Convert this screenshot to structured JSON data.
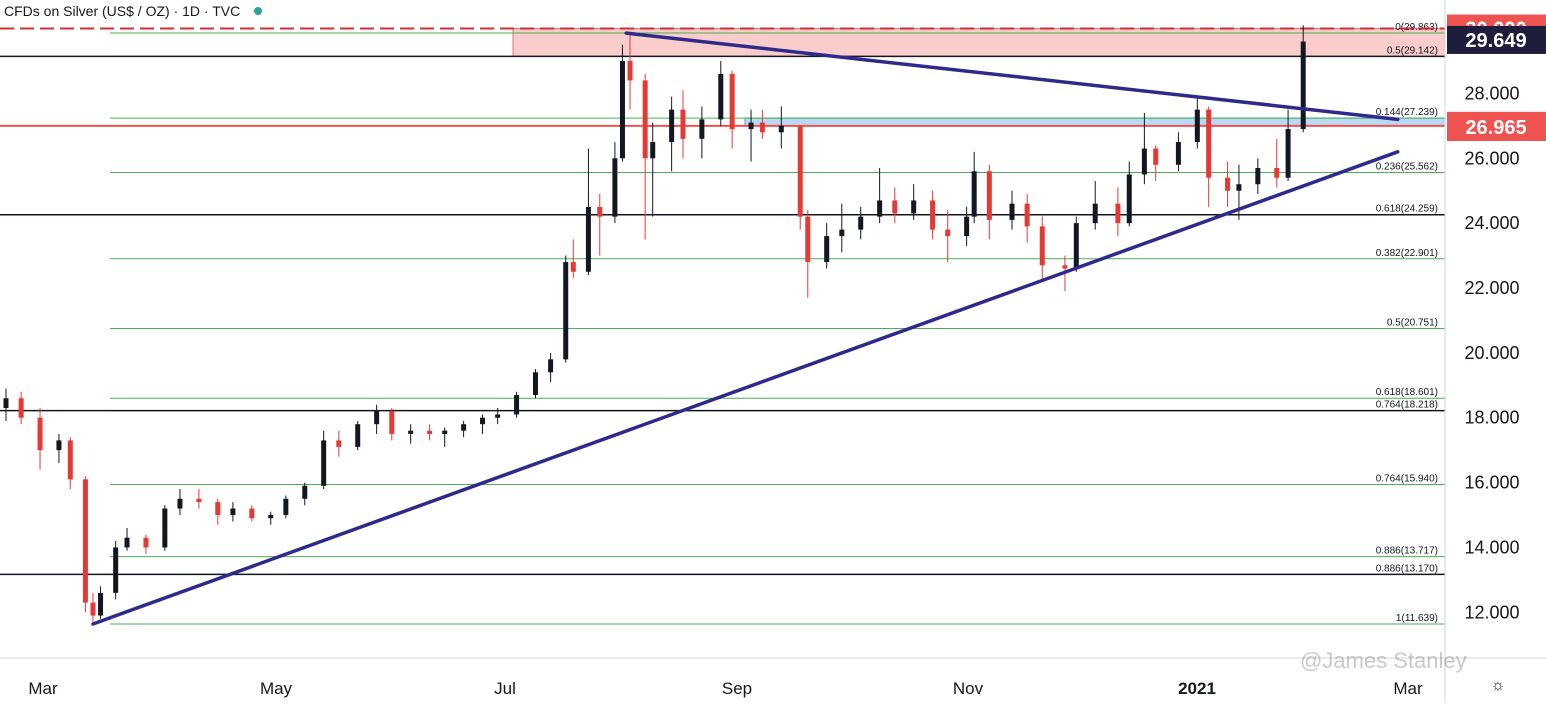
{
  "header": {
    "title": "CFDs on Silver (US$ / OZ) · 1D · TVC"
  },
  "watermark": "@James Stanley",
  "colors": {
    "up": "#131722",
    "down": "#e53935",
    "fib_green": "#4caf50",
    "trendline": "#2e2a8c",
    "resistance_zone": "rgba(244,143,143,0.45)",
    "support_zone": "rgba(100,170,230,0.45)",
    "price_label_red": "#ef5350",
    "price_label_dark": "#1e1e3c"
  },
  "chart_data": {
    "type": "candlestick",
    "ylim": [
      10.5,
      30.4
    ],
    "yticks": [
      "12.000",
      "14.000",
      "16.000",
      "18.000",
      "20.000",
      "22.000",
      "24.000",
      "26.000",
      "28.000"
    ],
    "x_labels": [
      "Mar",
      "May",
      "Jul",
      "Sep",
      "Nov",
      "2021",
      "Mar"
    ],
    "price_labels": [
      {
        "text": "30.000",
        "value": 30.0,
        "style": "red"
      },
      {
        "text": "29.649",
        "value": 29.649,
        "style": "dark"
      },
      {
        "text": "27.000",
        "value": 27.0,
        "style": "red"
      },
      {
        "text": "26.965",
        "value": 26.965,
        "style": "red"
      }
    ],
    "fib_levels": [
      {
        "label": "0(29.863)",
        "value": 29.863
      },
      {
        "label": "0.5(29.142)",
        "value": 29.142
      },
      {
        "label": "0.144(27.239)",
        "value": 27.239
      },
      {
        "label": "0.236(25.562)",
        "value": 25.562
      },
      {
        "label": "0.618(24.259)",
        "value": 24.259
      },
      {
        "label": "0.382(22.901)",
        "value": 22.901
      },
      {
        "label": "0.5(20.751)",
        "value": 20.751
      },
      {
        "label": "0.618(18.601)",
        "value": 18.601
      },
      {
        "label": "0.764(18.218)",
        "value": 18.218
      },
      {
        "label": "0.764(15.940)",
        "value": 15.94
      },
      {
        "label": "0.886(13.717)",
        "value": 13.717
      },
      {
        "label": "0.886(13.170)",
        "value": 13.17
      },
      {
        "label": "1(11.639)",
        "value": 11.639
      }
    ],
    "horizontal_lines": [
      {
        "value": 30.0,
        "style": "red-dashed"
      },
      {
        "value": 29.142,
        "style": "black"
      },
      {
        "value": 27.0,
        "style": "red"
      },
      {
        "value": 24.259,
        "style": "black"
      },
      {
        "value": 18.218,
        "style": "black"
      },
      {
        "value": 13.17,
        "style": "black"
      }
    ],
    "zones": [
      {
        "name": "resistance",
        "from": 29.142,
        "to": 30.0
      },
      {
        "name": "support",
        "from": 27.0,
        "to": 27.239
      }
    ],
    "trendlines": [
      {
        "from": [
          "2020-03-18",
          11.64
        ],
        "to": [
          "2021-02-26",
          26.2
        ]
      },
      {
        "from": [
          "2020-08-06",
          29.86
        ],
        "to": [
          "2021-02-26",
          27.2
        ]
      }
    ],
    "candles": [
      [
        "2020-02-24",
        18.3,
        18.9,
        17.9,
        18.6
      ],
      [
        "2020-02-28",
        18.6,
        18.8,
        17.8,
        18.0
      ],
      [
        "2020-03-04",
        18.0,
        18.3,
        16.4,
        17.0
      ],
      [
        "2020-03-09",
        17.0,
        17.5,
        16.6,
        17.3
      ],
      [
        "2020-03-12",
        17.3,
        17.4,
        15.8,
        16.1
      ],
      [
        "2020-03-16",
        16.1,
        16.2,
        12.0,
        12.3
      ],
      [
        "2020-03-18",
        12.3,
        12.6,
        11.6,
        11.9
      ],
      [
        "2020-03-20",
        11.9,
        12.8,
        11.8,
        12.6
      ],
      [
        "2020-03-24",
        12.6,
        14.2,
        12.4,
        14.0
      ],
      [
        "2020-03-27",
        14.0,
        14.6,
        13.9,
        14.3
      ],
      [
        "2020-04-01",
        14.3,
        14.4,
        13.8,
        14.0
      ],
      [
        "2020-04-06",
        14.0,
        15.3,
        13.9,
        15.2
      ],
      [
        "2020-04-10",
        15.2,
        15.8,
        15.0,
        15.5
      ],
      [
        "2020-04-15",
        15.5,
        15.8,
        15.2,
        15.4
      ],
      [
        "2020-04-20",
        15.4,
        15.5,
        14.7,
        15.0
      ],
      [
        "2020-04-24",
        15.0,
        15.4,
        14.8,
        15.2
      ],
      [
        "2020-04-29",
        15.2,
        15.3,
        14.8,
        14.9
      ],
      [
        "2020-05-04",
        14.9,
        15.1,
        14.7,
        15.0
      ],
      [
        "2020-05-08",
        15.0,
        15.6,
        14.9,
        15.5
      ],
      [
        "2020-05-13",
        15.5,
        16.0,
        15.3,
        15.9
      ],
      [
        "2020-05-18",
        15.9,
        17.6,
        15.8,
        17.3
      ],
      [
        "2020-05-22",
        17.3,
        17.6,
        16.8,
        17.1
      ],
      [
        "2020-05-27",
        17.1,
        17.9,
        17.0,
        17.8
      ],
      [
        "2020-06-01",
        17.8,
        18.4,
        17.5,
        18.2
      ],
      [
        "2020-06-05",
        18.2,
        18.3,
        17.3,
        17.5
      ],
      [
        "2020-06-10",
        17.5,
        17.8,
        17.2,
        17.6
      ],
      [
        "2020-06-15",
        17.6,
        17.8,
        17.3,
        17.5
      ],
      [
        "2020-06-19",
        17.5,
        17.7,
        17.1,
        17.6
      ],
      [
        "2020-06-24",
        17.6,
        17.9,
        17.4,
        17.8
      ],
      [
        "2020-06-29",
        17.8,
        18.1,
        17.5,
        18.0
      ],
      [
        "2020-07-03",
        18.0,
        18.3,
        17.8,
        18.1
      ],
      [
        "2020-07-08",
        18.1,
        18.8,
        18.0,
        18.7
      ],
      [
        "2020-07-13",
        18.7,
        19.5,
        18.6,
        19.4
      ],
      [
        "2020-07-17",
        19.4,
        20.0,
        19.1,
        19.8
      ],
      [
        "2020-07-21",
        19.8,
        23.0,
        19.7,
        22.8
      ],
      [
        "2020-07-23",
        22.8,
        23.5,
        22.3,
        22.5
      ],
      [
        "2020-07-27",
        22.5,
        26.3,
        22.4,
        24.5
      ],
      [
        "2020-07-30",
        24.5,
        24.9,
        23.0,
        24.2
      ],
      [
        "2020-08-03",
        24.2,
        26.5,
        24.0,
        26.0
      ],
      [
        "2020-08-05",
        26.0,
        29.5,
        25.9,
        29.0
      ],
      [
        "2020-08-07",
        29.0,
        29.9,
        27.5,
        28.4
      ],
      [
        "2020-08-11",
        28.4,
        28.6,
        23.5,
        26.0
      ],
      [
        "2020-08-13",
        26.0,
        27.1,
        24.2,
        26.5
      ],
      [
        "2020-08-18",
        26.5,
        27.9,
        25.6,
        27.5
      ],
      [
        "2020-08-21",
        27.5,
        28.1,
        26.0,
        26.6
      ],
      [
        "2020-08-26",
        26.6,
        27.6,
        26.0,
        27.2
      ],
      [
        "2020-08-31",
        27.2,
        29.0,
        27.0,
        28.6
      ],
      [
        "2020-09-03",
        28.6,
        28.7,
        26.3,
        26.9
      ],
      [
        "2020-09-08",
        26.9,
        27.5,
        25.9,
        27.1
      ],
      [
        "2020-09-11",
        27.1,
        27.5,
        26.6,
        26.8
      ],
      [
        "2020-09-16",
        26.8,
        27.6,
        26.3,
        27.0
      ],
      [
        "2020-09-21",
        27.0,
        27.0,
        23.8,
        24.2
      ],
      [
        "2020-09-23",
        24.2,
        24.4,
        21.7,
        22.8
      ],
      [
        "2020-09-28",
        22.8,
        24.0,
        22.6,
        23.6
      ],
      [
        "2020-10-02",
        23.6,
        24.6,
        23.1,
        23.8
      ],
      [
        "2020-10-07",
        23.8,
        24.5,
        23.5,
        24.2
      ],
      [
        "2020-10-12",
        24.2,
        25.7,
        24.0,
        24.7
      ],
      [
        "2020-10-16",
        24.7,
        25.1,
        24.0,
        24.3
      ],
      [
        "2020-10-21",
        24.3,
        25.2,
        24.1,
        24.7
      ],
      [
        "2020-10-26",
        24.7,
        25.0,
        23.5,
        23.8
      ],
      [
        "2020-10-30",
        23.8,
        24.4,
        22.8,
        23.6
      ],
      [
        "2020-11-04",
        23.6,
        24.5,
        23.3,
        24.2
      ],
      [
        "2020-11-06",
        24.2,
        26.2,
        24.0,
        25.6
      ],
      [
        "2020-11-10",
        25.6,
        25.8,
        23.5,
        24.1
      ],
      [
        "2020-11-16",
        24.1,
        25.0,
        23.8,
        24.6
      ],
      [
        "2020-11-20",
        24.6,
        24.9,
        23.4,
        23.9
      ],
      [
        "2020-11-24",
        23.9,
        24.2,
        22.2,
        22.7
      ],
      [
        "2020-11-30",
        22.7,
        23.0,
        21.9,
        22.6
      ],
      [
        "2020-12-03",
        22.6,
        24.2,
        22.5,
        24.0
      ],
      [
        "2020-12-08",
        24.0,
        25.3,
        23.8,
        24.6
      ],
      [
        "2020-12-14",
        24.6,
        25.1,
        23.6,
        24.0
      ],
      [
        "2020-12-17",
        24.0,
        25.9,
        23.9,
        25.5
      ],
      [
        "2020-12-21",
        25.5,
        27.4,
        25.2,
        26.3
      ],
      [
        "2020-12-24",
        26.3,
        26.4,
        25.3,
        25.8
      ],
      [
        "2020-12-30",
        25.8,
        26.8,
        25.6,
        26.5
      ],
      [
        "2021-01-04",
        26.5,
        27.9,
        26.3,
        27.5
      ],
      [
        "2021-01-07",
        27.5,
        27.6,
        24.5,
        25.4
      ],
      [
        "2021-01-12",
        25.4,
        25.9,
        24.5,
        25.0
      ],
      [
        "2021-01-15",
        25.0,
        25.8,
        24.1,
        25.2
      ],
      [
        "2021-01-20",
        25.2,
        26.0,
        24.9,
        25.7
      ],
      [
        "2021-01-25",
        25.7,
        26.6,
        25.1,
        25.4
      ],
      [
        "2021-01-28",
        25.4,
        27.5,
        25.3,
        26.9
      ],
      [
        "2021-02-01",
        26.9,
        30.1,
        26.8,
        29.6
      ]
    ]
  }
}
